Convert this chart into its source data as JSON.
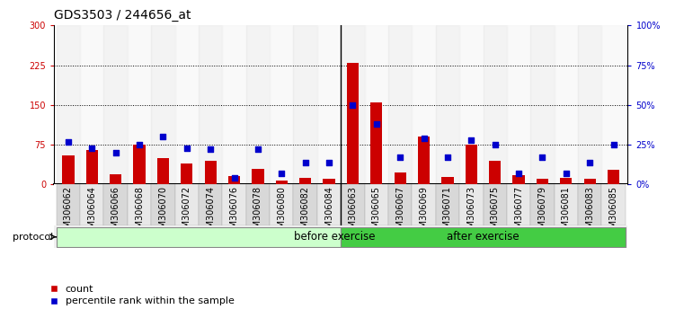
{
  "title": "GDS3503 / 244656_at",
  "categories": [
    "GSM306062",
    "GSM306064",
    "GSM306066",
    "GSM306068",
    "GSM306070",
    "GSM306072",
    "GSM306074",
    "GSM306076",
    "GSM306078",
    "GSM306080",
    "GSM306082",
    "GSM306084",
    "GSM306063",
    "GSM306065",
    "GSM306067",
    "GSM306069",
    "GSM306071",
    "GSM306073",
    "GSM306075",
    "GSM306077",
    "GSM306079",
    "GSM306081",
    "GSM306083",
    "GSM306085"
  ],
  "count_values": [
    55,
    65,
    20,
    75,
    50,
    40,
    45,
    15,
    30,
    8,
    12,
    10,
    230,
    155,
    22,
    90,
    14,
    75,
    45,
    17,
    10,
    12,
    10,
    28
  ],
  "percentile_values": [
    27,
    23,
    20,
    25,
    30,
    23,
    22,
    4,
    22,
    7,
    14,
    14,
    50,
    38,
    17,
    29,
    17,
    28,
    25,
    7,
    17,
    7,
    14,
    25
  ],
  "before_exercise_count": 12,
  "after_exercise_count": 12,
  "count_color": "#cc0000",
  "percentile_color": "#0000cc",
  "ylim_left": [
    0,
    300
  ],
  "ylim_right": [
    0,
    100
  ],
  "yticks_left": [
    0,
    75,
    150,
    225,
    300
  ],
  "yticks_right": [
    0,
    25,
    50,
    75,
    100
  ],
  "ytick_labels_right": [
    "0%",
    "25%",
    "50%",
    "75%",
    "100%"
  ],
  "hlines": [
    75,
    150,
    225
  ],
  "protocol_label": "protocol",
  "before_label": "before exercise",
  "after_label": "after exercise",
  "legend_count_label": "count",
  "legend_percentile_label": "percentile rank within the sample",
  "before_bg": "#ccffcc",
  "after_bg": "#44cc44",
  "title_fontsize": 10,
  "tick_fontsize": 7,
  "bar_width": 0.5
}
